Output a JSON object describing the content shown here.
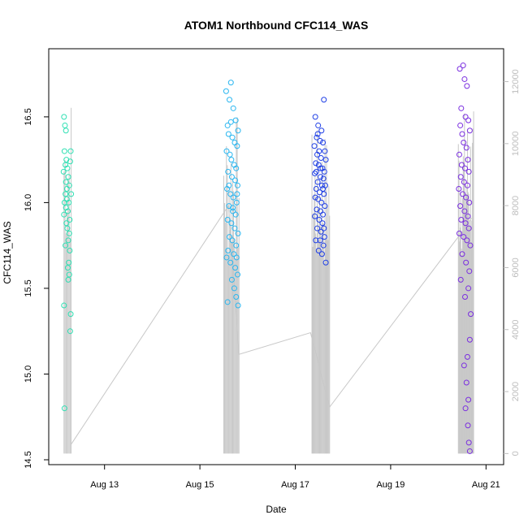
{
  "chart_data": {
    "type": "scatter",
    "title": "ATOM1 Northbound CFC114_WAS",
    "xlabel": "Date",
    "ylabel": "CFC114_WAS",
    "x_unit": "day of August",
    "xlim": [
      12.0,
      21.25
    ],
    "ylim": [
      14.5,
      16.85
    ],
    "y2lim": [
      -200,
      12800
    ],
    "x_ticks": [
      {
        "value": 13,
        "label": "Aug 13"
      },
      {
        "value": 15,
        "label": "Aug 15"
      },
      {
        "value": 17,
        "label": "Aug 17"
      },
      {
        "value": 19,
        "label": "Aug 19"
      },
      {
        "value": 21,
        "label": "Aug 21"
      }
    ],
    "y_ticks": [
      {
        "value": 14.5,
        "label": "14.5"
      },
      {
        "value": 15.0,
        "label": "15.0"
      },
      {
        "value": 15.5,
        "label": "15.5"
      },
      {
        "value": 16.0,
        "label": "16.0"
      },
      {
        "value": 16.5,
        "label": "16.5"
      }
    ],
    "y2_ticks": [
      {
        "value": 0,
        "label": "0"
      },
      {
        "value": 2000,
        "label": "2000"
      },
      {
        "value": 4000,
        "label": "4000"
      },
      {
        "value": 6000,
        "label": "6000"
      },
      {
        "value": 8000,
        "label": "8000"
      },
      {
        "value": 10000,
        "label": "10000"
      },
      {
        "value": 12000,
        "label": "12000"
      }
    ],
    "grid": false,
    "legend": "none",
    "series": [
      {
        "color": "#2fe0b3",
        "points": [
          [
            12.15,
            16.5
          ],
          [
            12.17,
            16.45
          ],
          [
            12.19,
            16.42
          ],
          [
            12.16,
            16.3
          ],
          [
            12.2,
            16.25
          ],
          [
            12.18,
            16.22
          ],
          [
            12.22,
            16.2
          ],
          [
            12.14,
            16.18
          ],
          [
            12.24,
            16.15
          ],
          [
            12.26,
            16.1
          ],
          [
            12.18,
            16.05
          ],
          [
            12.21,
            16.02
          ],
          [
            12.16,
            16.0
          ],
          [
            12.25,
            16.0
          ],
          [
            12.19,
            15.97
          ],
          [
            12.23,
            15.95
          ],
          [
            12.15,
            15.93
          ],
          [
            12.27,
            15.9
          ],
          [
            12.2,
            15.88
          ],
          [
            12.22,
            15.85
          ],
          [
            12.26,
            15.82
          ],
          [
            12.24,
            15.78
          ],
          [
            12.18,
            15.75
          ],
          [
            12.27,
            15.72
          ],
          [
            12.25,
            15.65
          ],
          [
            12.23,
            15.62
          ],
          [
            12.26,
            15.58
          ],
          [
            12.24,
            15.55
          ],
          [
            12.15,
            15.4
          ],
          [
            12.29,
            15.35
          ],
          [
            12.28,
            15.25
          ],
          [
            12.16,
            14.8
          ],
          [
            12.29,
            16.3
          ],
          [
            12.28,
            16.24
          ],
          [
            12.3,
            16.05
          ],
          [
            12.21,
            16.08
          ],
          [
            12.19,
            16.12
          ]
        ]
      },
      {
        "color": "#29b6f0",
        "points": [
          [
            15.55,
            16.65
          ],
          [
            15.65,
            16.7
          ],
          [
            15.62,
            16.6
          ],
          [
            15.7,
            16.55
          ],
          [
            15.58,
            16.45
          ],
          [
            15.75,
            16.48
          ],
          [
            15.8,
            16.42
          ],
          [
            15.6,
            16.4
          ],
          [
            15.68,
            16.38
          ],
          [
            15.73,
            16.35
          ],
          [
            15.78,
            16.33
          ],
          [
            15.56,
            16.3
          ],
          [
            15.63,
            16.28
          ],
          [
            15.66,
            16.25
          ],
          [
            15.72,
            16.22
          ],
          [
            15.76,
            16.2
          ],
          [
            15.59,
            16.18
          ],
          [
            15.67,
            16.15
          ],
          [
            15.74,
            16.13
          ],
          [
            15.79,
            16.1
          ],
          [
            15.57,
            16.08
          ],
          [
            15.64,
            16.05
          ],
          [
            15.7,
            16.03
          ],
          [
            15.77,
            16.0
          ],
          [
            15.61,
            15.98
          ],
          [
            15.69,
            15.95
          ],
          [
            15.75,
            15.93
          ],
          [
            15.58,
            15.9
          ],
          [
            15.66,
            15.88
          ],
          [
            15.73,
            15.85
          ],
          [
            15.8,
            15.82
          ],
          [
            15.62,
            15.8
          ],
          [
            15.68,
            15.78
          ],
          [
            15.76,
            15.75
          ],
          [
            15.59,
            15.72
          ],
          [
            15.71,
            15.7
          ],
          [
            15.77,
            15.68
          ],
          [
            15.64,
            15.65
          ],
          [
            15.74,
            15.62
          ],
          [
            15.79,
            15.58
          ],
          [
            15.67,
            15.55
          ],
          [
            15.72,
            15.5
          ],
          [
            15.76,
            15.45
          ],
          [
            15.58,
            15.42
          ],
          [
            15.8,
            15.4
          ],
          [
            15.65,
            16.47
          ],
          [
            15.61,
            16.1
          ],
          [
            15.69,
            15.97
          ],
          [
            15.78,
            16.05
          ],
          [
            15.56,
            15.68
          ]
        ]
      },
      {
        "color": "#1f3fe6",
        "points": [
          [
            17.42,
            16.5
          ],
          [
            17.48,
            16.45
          ],
          [
            17.6,
            16.6
          ],
          [
            17.55,
            16.42
          ],
          [
            17.45,
            16.38
          ],
          [
            17.52,
            16.36
          ],
          [
            17.58,
            16.35
          ],
          [
            17.4,
            16.33
          ],
          [
            17.5,
            16.3
          ],
          [
            17.62,
            16.3
          ],
          [
            17.46,
            16.28
          ],
          [
            17.54,
            16.26
          ],
          [
            17.64,
            16.25
          ],
          [
            17.43,
            16.23
          ],
          [
            17.49,
            16.22
          ],
          [
            17.57,
            16.2
          ],
          [
            17.61,
            16.18
          ],
          [
            17.41,
            16.17
          ],
          [
            17.53,
            16.15
          ],
          [
            17.59,
            16.14
          ],
          [
            17.47,
            16.12
          ],
          [
            17.56,
            16.1
          ],
          [
            17.63,
            16.1
          ],
          [
            17.44,
            16.08
          ],
          [
            17.51,
            16.06
          ],
          [
            17.6,
            16.05
          ],
          [
            17.42,
            16.03
          ],
          [
            17.48,
            16.02
          ],
          [
            17.55,
            16.0
          ],
          [
            17.62,
            15.98
          ],
          [
            17.45,
            15.96
          ],
          [
            17.53,
            15.95
          ],
          [
            17.58,
            15.93
          ],
          [
            17.41,
            15.92
          ],
          [
            17.5,
            15.9
          ],
          [
            17.57,
            15.88
          ],
          [
            17.46,
            15.85
          ],
          [
            17.54,
            15.83
          ],
          [
            17.61,
            15.8
          ],
          [
            17.43,
            15.78
          ],
          [
            17.52,
            15.78
          ],
          [
            17.59,
            15.75
          ],
          [
            17.49,
            15.72
          ],
          [
            17.56,
            15.7
          ],
          [
            17.64,
            15.65
          ],
          [
            17.47,
            16.4
          ],
          [
            17.53,
            16.2
          ],
          [
            17.58,
            16.08
          ],
          [
            17.44,
            16.18
          ],
          [
            17.6,
            15.85
          ]
        ]
      },
      {
        "color": "#7a2ee0",
        "points": [
          [
            20.45,
            16.78
          ],
          [
            20.52,
            16.8
          ],
          [
            20.55,
            16.72
          ],
          [
            20.6,
            16.68
          ],
          [
            20.48,
            16.55
          ],
          [
            20.57,
            16.5
          ],
          [
            20.63,
            16.48
          ],
          [
            20.46,
            16.45
          ],
          [
            20.5,
            16.4
          ],
          [
            20.66,
            16.42
          ],
          [
            20.53,
            16.35
          ],
          [
            20.59,
            16.32
          ],
          [
            20.44,
            16.28
          ],
          [
            20.62,
            16.25
          ],
          [
            20.49,
            16.22
          ],
          [
            20.56,
            16.2
          ],
          [
            20.64,
            16.18
          ],
          [
            20.47,
            16.15
          ],
          [
            20.54,
            16.12
          ],
          [
            20.61,
            16.1
          ],
          [
            20.43,
            16.08
          ],
          [
            20.51,
            16.05
          ],
          [
            20.58,
            16.03
          ],
          [
            20.65,
            16.0
          ],
          [
            20.46,
            15.98
          ],
          [
            20.55,
            15.95
          ],
          [
            20.62,
            15.92
          ],
          [
            20.48,
            15.9
          ],
          [
            20.57,
            15.88
          ],
          [
            20.64,
            15.85
          ],
          [
            20.44,
            15.82
          ],
          [
            20.53,
            15.8
          ],
          [
            20.6,
            15.78
          ],
          [
            20.67,
            15.75
          ],
          [
            20.5,
            15.7
          ],
          [
            20.58,
            15.65
          ],
          [
            20.65,
            15.6
          ],
          [
            20.47,
            15.55
          ],
          [
            20.63,
            15.5
          ],
          [
            20.56,
            15.45
          ],
          [
            20.68,
            15.35
          ],
          [
            20.66,
            15.2
          ],
          [
            20.61,
            15.1
          ],
          [
            20.54,
            15.05
          ],
          [
            20.59,
            14.95
          ],
          [
            20.63,
            14.85
          ],
          [
            20.57,
            14.8
          ],
          [
            20.62,
            14.7
          ],
          [
            20.64,
            14.6
          ],
          [
            20.66,
            14.55
          ]
        ]
      }
    ],
    "secondary_series": {
      "color": "#c8c8c8",
      "line": [
        [
          12.3,
          300
        ],
        [
          15.6,
          8000
        ],
        [
          15.82,
          3200
        ],
        [
          17.32,
          3900
        ],
        [
          17.72,
          1500
        ],
        [
          20.52,
          7200
        ],
        [
          20.7,
          7600
        ]
      ],
      "bursts": [
        {
          "x": [
            12.15,
            12.3
          ],
          "count": 8,
          "y_max": 11800
        },
        {
          "x": [
            15.5,
            15.82
          ],
          "count": 18,
          "y_max": 11000
        },
        {
          "x": [
            17.35,
            17.72
          ],
          "count": 24,
          "y_max": 10500
        },
        {
          "x": [
            20.42,
            20.74
          ],
          "count": 26,
          "y_max": 11200
        }
      ]
    }
  }
}
